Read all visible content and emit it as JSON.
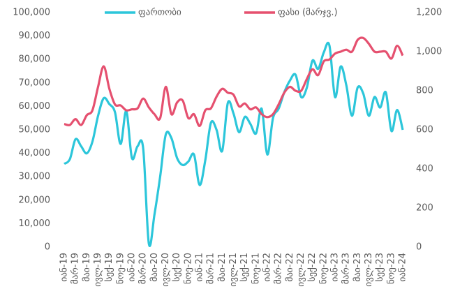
{
  "chart_data": {
    "type": "line",
    "categories": [
      "იან-19",
      null,
      "მარ-19",
      null,
      "მაი-19",
      null,
      "ივლ-19",
      null,
      "სექ-19",
      null,
      "ნოე-19",
      null,
      "იან-20",
      null,
      "მარ-20",
      null,
      "მაი-20",
      null,
      "ივლ-20",
      null,
      "სექ-20",
      null,
      "ნოე-20",
      null,
      "იან-21",
      null,
      "მარ-21",
      null,
      "მაი-21",
      null,
      "ივლ-21",
      null,
      "სექ-21",
      null,
      "ნოე-21",
      null,
      "იან-22",
      null,
      "მარ-22",
      null,
      "მაი-22",
      null,
      "ივლ-22",
      null,
      "სექ-22",
      null,
      "ნოე-22",
      null,
      "იან-23",
      null,
      "მარ-23",
      null,
      "მაი-23",
      null,
      "ივლ-23",
      null,
      "სექ-23",
      null,
      "ნოე-23",
      null,
      "იან-24"
    ],
    "series": [
      {
        "name": "ფართობი",
        "color": "#2cc6da",
        "values": [
          35500,
          37500,
          46000,
          43000,
          40000,
          45000,
          56000,
          63500,
          61000,
          57500,
          44000,
          58000,
          38000,
          43000,
          42000,
          1500,
          14000,
          30000,
          48000,
          46500,
          38000,
          35000,
          36500,
          39500,
          26500,
          37000,
          53000,
          50000,
          41000,
          61500,
          57000,
          49000,
          55500,
          52500,
          48500,
          59000,
          39500,
          55000,
          59000,
          66000,
          71000,
          73500,
          64000,
          68000,
          79500,
          76000,
          83000,
          86000,
          64000,
          77000,
          69000,
          56000,
          68000,
          65500,
          56000,
          64000,
          59500,
          66000,
          49500,
          58500,
          50000
        ]
      },
      {
        "name": "ფასი (მარჯვ.)",
        "color": "#e5506f",
        "axis": "y2",
        "values": [
          630,
          625,
          655,
          625,
          675,
          700,
          820,
          925,
          810,
          730,
          725,
          700,
          705,
          710,
          760,
          715,
          680,
          660,
          820,
          680,
          740,
          750,
          660,
          680,
          620,
          700,
          710,
          770,
          810,
          790,
          780,
          720,
          735,
          705,
          715,
          680,
          665,
          680,
          730,
          790,
          820,
          800,
          800,
          860,
          910,
          880,
          950,
          960,
          990,
          1000,
          1010,
          1000,
          1060,
          1070,
          1040,
          1000,
          1000,
          1000,
          965,
          1030,
          980
        ]
      }
    ],
    "ylim": [
      0,
      100000
    ],
    "yticks": [
      0,
      {
        "value": 10000,
        "label": "10,000"
      },
      {
        "value": 20000,
        "label": "20,000"
      },
      {
        "value": 30000,
        "label": "30,000"
      },
      {
        "value": 40000,
        "label": "40,000"
      },
      {
        "value": 50000,
        "label": "50,000"
      },
      {
        "value": 60000,
        "label": "60,000"
      },
      {
        "value": 70000,
        "label": "70,000"
      },
      {
        "value": 80000,
        "label": "80,000"
      },
      {
        "value": 90000,
        "label": "90,000"
      },
      {
        "value": 100000,
        "label": "100,000"
      }
    ],
    "y2lim": [
      0,
      1200
    ],
    "y2ticks": [
      0,
      200,
      400,
      600,
      800,
      {
        "value": 1000,
        "label": "1,000"
      },
      {
        "value": 1200,
        "label": "1,200"
      }
    ]
  }
}
